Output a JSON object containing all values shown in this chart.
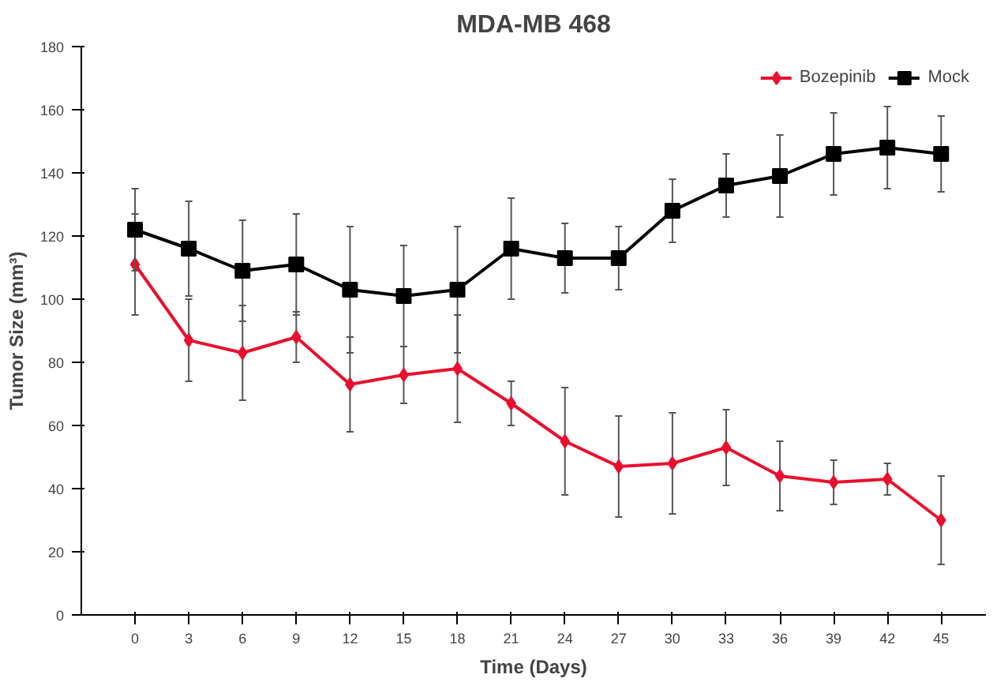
{
  "chart_data": {
    "type": "line",
    "title": "MDA-MB 468",
    "xlabel": "Time (Days)",
    "ylabel": "Tumor Size (mm³)",
    "x": [
      0,
      3,
      6,
      9,
      12,
      15,
      18,
      21,
      24,
      27,
      30,
      33,
      36,
      39,
      42,
      45
    ],
    "xlim": [
      -3,
      47.5
    ],
    "xticks": [
      0,
      3,
      6,
      9,
      12,
      15,
      18,
      21,
      24,
      27,
      30,
      33,
      36,
      39,
      42,
      45
    ],
    "series": [
      {
        "name": "Bozepinib",
        "color": "#e8102e",
        "marker": "diamond",
        "values": [
          111,
          87,
          83,
          88,
          73,
          76,
          78,
          67,
          55,
          47,
          48,
          53,
          44,
          42,
          43,
          30
        ],
        "errors": [
          16,
          13,
          15,
          8,
          15,
          9,
          17,
          7,
          17,
          16,
          16,
          12,
          11,
          7,
          5,
          14
        ]
      },
      {
        "name": "Mock",
        "color": "#000000",
        "marker": "square",
        "values": [
          122,
          116,
          109,
          111,
          103,
          101,
          103,
          116,
          113,
          113,
          128,
          136,
          139,
          146,
          148,
          146
        ],
        "errors": [
          13,
          15,
          16,
          16,
          20,
          16,
          20,
          16,
          11,
          10,
          10,
          10,
          13,
          13,
          13,
          12
        ]
      }
    ],
    "ylim": [
      0,
      180
    ],
    "yticks": [
      0,
      20,
      40,
      60,
      80,
      100,
      120,
      140,
      160,
      180
    ],
    "grid": false,
    "legend": "top right",
    "line_style": "solid"
  }
}
